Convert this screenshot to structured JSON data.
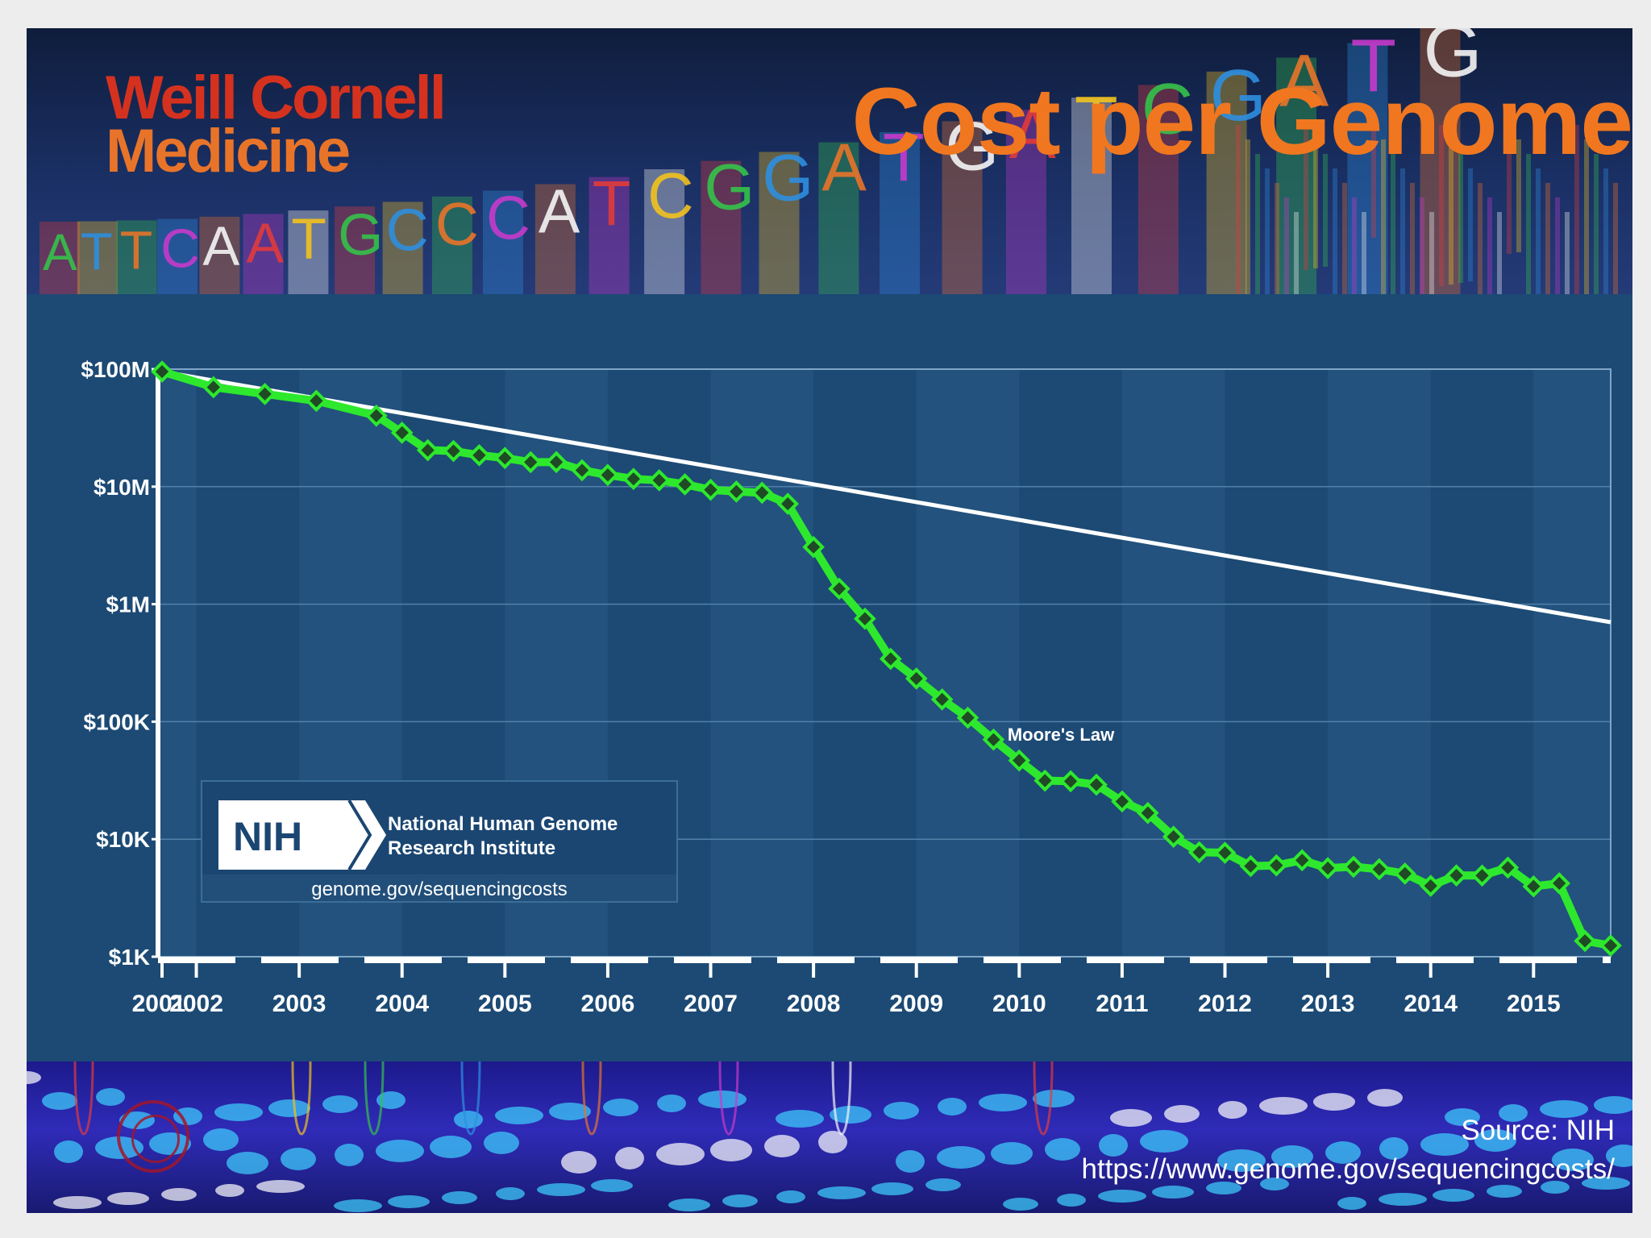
{
  "slide": {
    "logo_line1": "Weill Cornell",
    "logo_line2": "Medicine",
    "title": "Cost per Genome",
    "source_line1": "Source: NIH",
    "source_line2": "https://www.genome.gov/sequencingcosts/",
    "banner_letters": "ATTCAATGCCCATCGGATGATCGATG"
  },
  "nih": {
    "badge": "NIH",
    "line1": "National Human Genome",
    "line2": "Research Institute",
    "url": "genome.gov/sequencingcosts"
  },
  "colors": {
    "title_orange": "#f0771f",
    "logo_red": "#d4321f",
    "series_green": "#2ee82e",
    "marker_fill": "#1f4a25",
    "moore_line": "#ffffff",
    "panel_bg": "#1c4a74"
  },
  "chart_data": {
    "type": "line",
    "title": "",
    "xlabel": "",
    "ylabel": "",
    "yscale": "log",
    "ylim": [
      1000,
      100000000
    ],
    "y_ticks": [
      {
        "value": 100000000,
        "label": "$100M"
      },
      {
        "value": 10000000,
        "label": "$10M"
      },
      {
        "value": 1000000,
        "label": "$1M"
      },
      {
        "value": 100000,
        "label": "$100K"
      },
      {
        "value": 10000,
        "label": "$10K"
      },
      {
        "value": 1000,
        "label": "$1K"
      }
    ],
    "x_ticks": [
      "2001",
      "2002",
      "2003",
      "2004",
      "2005",
      "2006",
      "2007",
      "2008",
      "2009",
      "2010",
      "2011",
      "2012",
      "2013",
      "2014",
      "2015"
    ],
    "x_range": [
      "2001-09",
      "2015-10"
    ],
    "grid": true,
    "series": [
      {
        "name": "",
        "x": [
          "2001-09",
          "2002-03",
          "2002-09",
          "2003-03",
          "2003-10",
          "2004-01",
          "2004-04",
          "2004-07",
          "2004-10",
          "2005-01",
          "2005-04",
          "2005-07",
          "2005-10",
          "2006-01",
          "2006-04",
          "2006-07",
          "2006-10",
          "2007-01",
          "2007-04",
          "2007-07",
          "2007-10",
          "2008-01",
          "2008-04",
          "2008-07",
          "2008-10",
          "2009-01",
          "2009-04",
          "2009-07",
          "2009-10",
          "2010-01",
          "2010-04",
          "2010-07",
          "2010-10",
          "2011-01",
          "2011-04",
          "2011-07",
          "2011-10",
          "2012-01",
          "2012-04",
          "2012-07",
          "2012-10",
          "2013-01",
          "2013-04",
          "2013-07",
          "2013-10",
          "2014-01",
          "2014-04",
          "2014-07",
          "2014-10",
          "2015-01",
          "2015-04",
          "2015-07",
          "2015-10"
        ],
        "values": [
          95263072,
          70175437,
          61448931,
          53751684,
          40157554,
          28780376,
          20442576,
          20112077,
          18519312,
          17534970,
          16159699,
          16180224,
          13801124,
          12585659,
          11634736,
          11323081,
          10461710,
          9405795,
          9085603,
          8871461,
          7147571,
          3063176,
          1352982,
          752080,
          342502,
          232735,
          154714,
          108065,
          70333,
          46774,
          31512,
          31125,
          29092,
          20963,
          16712,
          10497,
          7743,
          7666,
          5901,
          5985,
          6618,
          5671,
          5826,
          5550,
          5096,
          4008,
          4920,
          4905,
          5731,
          3970,
          4211,
          1363,
          1245
        ]
      },
      {
        "name": "Moore's Law",
        "x": [
          "2001-09",
          "2015-10"
        ],
        "values": [
          95263072,
          702000
        ]
      }
    ],
    "annotations": [
      "Moore's Law"
    ]
  }
}
